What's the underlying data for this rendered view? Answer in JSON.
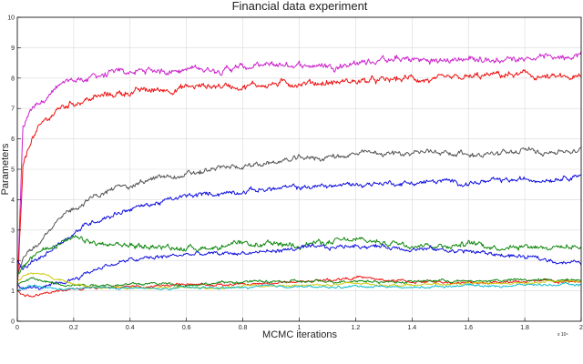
{
  "chart_data": {
    "type": "line",
    "title": "Financial data experiment",
    "xlabel": "MCMC iterations",
    "ylabel": "Parameters",
    "x_exponent_label": "x 10⁴",
    "xlim": [
      0,
      2
    ],
    "ylim": [
      0,
      10
    ],
    "x_ticks": [
      "0",
      "0.2",
      "0.4",
      "0.6",
      "0.8",
      "1",
      "1.2",
      "1.4",
      "1.6",
      "1.8",
      "2"
    ],
    "y_ticks": [
      "0",
      "1",
      "2",
      "3",
      "4",
      "5",
      "6",
      "7",
      "8",
      "9",
      "10"
    ],
    "grid": true,
    "legend": "none",
    "x": [
      0,
      0.02,
      0.05,
      0.1,
      0.15,
      0.2,
      0.25,
      0.3,
      0.4,
      0.5,
      0.6,
      0.7,
      0.8,
      0.9,
      1.0,
      1.1,
      1.2,
      1.3,
      1.4,
      1.5,
      1.6,
      1.7,
      1.8,
      1.9,
      2.0
    ],
    "series": [
      {
        "color": "#cc22cc",
        "noise": 0.12,
        "values": [
          1.0,
          6.3,
          7.0,
          7.4,
          7.7,
          7.9,
          8.0,
          8.1,
          8.2,
          8.25,
          8.3,
          8.3,
          8.35,
          8.4,
          8.45,
          8.4,
          8.5,
          8.6,
          8.6,
          8.55,
          8.65,
          8.6,
          8.7,
          8.7,
          8.8
        ]
      },
      {
        "color": "#ee1111",
        "noise": 0.12,
        "values": [
          1.0,
          5.0,
          6.0,
          6.6,
          7.0,
          7.2,
          7.3,
          7.4,
          7.55,
          7.6,
          7.7,
          7.75,
          7.75,
          7.8,
          7.85,
          7.85,
          7.9,
          7.9,
          8.0,
          7.9,
          8.0,
          8.1,
          8.1,
          8.0,
          8.0
        ]
      },
      {
        "color": "#555555",
        "noise": 0.1,
        "values": [
          1.5,
          2.0,
          2.4,
          2.9,
          3.3,
          3.7,
          4.0,
          4.2,
          4.5,
          4.7,
          4.8,
          5.0,
          5.1,
          5.2,
          5.35,
          5.4,
          5.5,
          5.5,
          5.55,
          5.6,
          5.5,
          5.5,
          5.6,
          5.6,
          5.6
        ]
      },
      {
        "color": "#1111dd",
        "noise": 0.09,
        "values": [
          2.0,
          1.7,
          1.9,
          2.2,
          2.6,
          2.9,
          3.2,
          3.4,
          3.7,
          3.9,
          4.1,
          4.2,
          4.3,
          4.35,
          4.4,
          4.45,
          4.5,
          4.55,
          4.55,
          4.6,
          4.55,
          4.6,
          4.65,
          4.7,
          4.85
        ]
      },
      {
        "color": "#118811",
        "noise": 0.1,
        "values": [
          1.5,
          1.8,
          2.1,
          2.4,
          2.6,
          2.7,
          2.6,
          2.5,
          2.5,
          2.45,
          2.4,
          2.45,
          2.5,
          2.5,
          2.55,
          2.6,
          2.65,
          2.6,
          2.55,
          2.5,
          2.55,
          2.45,
          2.5,
          2.45,
          2.45
        ]
      },
      {
        "color": "#1111dd",
        "noise": 0.08,
        "values": [
          1.2,
          1.1,
          1.1,
          1.1,
          1.2,
          1.4,
          1.6,
          1.8,
          2.0,
          2.1,
          2.2,
          2.2,
          2.25,
          2.3,
          2.4,
          2.4,
          2.5,
          2.45,
          2.4,
          2.35,
          2.3,
          2.2,
          2.1,
          2.0,
          1.9
        ]
      },
      {
        "color": "#ee1111",
        "noise": 0.05,
        "values": [
          1.0,
          0.9,
          0.85,
          0.9,
          1.0,
          1.05,
          1.1,
          1.1,
          1.15,
          1.15,
          1.2,
          1.2,
          1.2,
          1.25,
          1.3,
          1.35,
          1.45,
          1.35,
          1.3,
          1.3,
          1.25,
          1.3,
          1.3,
          1.3,
          1.3
        ]
      },
      {
        "color": "#118811",
        "noise": 0.05,
        "values": [
          1.2,
          1.3,
          1.4,
          1.3,
          1.25,
          1.2,
          1.2,
          1.2,
          1.2,
          1.25,
          1.2,
          1.25,
          1.3,
          1.3,
          1.3,
          1.3,
          1.35,
          1.3,
          1.3,
          1.35,
          1.3,
          1.35,
          1.35,
          1.35,
          1.4
        ]
      },
      {
        "color": "#cccc11",
        "noise": 0.04,
        "values": [
          1.3,
          1.5,
          1.6,
          1.5,
          1.35,
          1.25,
          1.15,
          1.1,
          1.1,
          1.1,
          1.1,
          1.1,
          1.15,
          1.15,
          1.2,
          1.2,
          1.25,
          1.2,
          1.2,
          1.2,
          1.25,
          1.25,
          1.25,
          1.3,
          1.3
        ]
      },
      {
        "color": "#11bbcc",
        "noise": 0.04,
        "values": [
          1.0,
          1.1,
          1.15,
          1.1,
          1.05,
          1.05,
          1.1,
          1.1,
          1.1,
          1.05,
          1.1,
          1.1,
          1.1,
          1.15,
          1.15,
          1.1,
          1.15,
          1.15,
          1.1,
          1.15,
          1.2,
          1.15,
          1.2,
          1.2,
          1.2
        ]
      }
    ]
  }
}
